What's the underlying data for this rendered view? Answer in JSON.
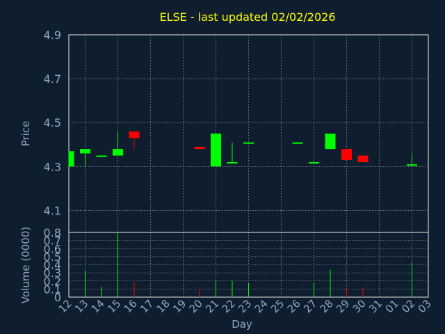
{
  "chart_data": {
    "type": "candlestick",
    "title": "ELSE - last updated 02/02/2026",
    "ylabel": "Price",
    "volume_ylabel": "Volume (0000)",
    "xlabel": "Day",
    "ylim": [
      4.0,
      4.9
    ],
    "volume_ylim": [
      0,
      0.8
    ],
    "price_ticks": [
      "4.9",
      "4.7",
      "4.5",
      "4.3",
      "4.1"
    ],
    "volume_ticks": [
      "0.8",
      "0.7",
      "0.6",
      "0.5",
      "0.4",
      "0.3",
      "0.2",
      "0.1",
      "0"
    ],
    "categories": [
      "12",
      "13",
      "14",
      "15",
      "16",
      "17",
      "18",
      "19",
      "20",
      "21",
      "22",
      "23",
      "24",
      "25",
      "26",
      "27",
      "28",
      "29",
      "30",
      "31",
      "01",
      "02",
      "03"
    ],
    "colors": {
      "up": "#00ff00",
      "down": "#ff0000",
      "title": "#ffff00",
      "axis_text": "#8fa9c6",
      "background": "#0f1e2e"
    },
    "candles": [
      {
        "x": "12",
        "open": 4.3,
        "high": 4.37,
        "low": 4.3,
        "close": 4.37,
        "volume": 0.0
      },
      {
        "x": "13",
        "open": 4.36,
        "high": 4.38,
        "low": 4.3,
        "close": 4.38,
        "volume": 0.33
      },
      {
        "x": "14",
        "open": 4.35,
        "high": 4.35,
        "low": 4.35,
        "close": 4.35,
        "volume": 0.13
      },
      {
        "x": "15",
        "open": 4.35,
        "high": 4.46,
        "low": 4.35,
        "close": 4.38,
        "volume": 0.8
      },
      {
        "x": "16",
        "open": 4.46,
        "high": 4.46,
        "low": 4.38,
        "close": 4.43,
        "volume": 0.19
      },
      {
        "x": "20",
        "open": 4.39,
        "high": 4.39,
        "low": 4.38,
        "close": 4.38,
        "volume": 0.1
      },
      {
        "x": "21",
        "open": 4.3,
        "high": 4.45,
        "low": 4.3,
        "close": 4.45,
        "volume": 0.2
      },
      {
        "x": "22",
        "open": 4.32,
        "high": 4.41,
        "low": 4.32,
        "close": 4.32,
        "volume": 0.2
      },
      {
        "x": "23",
        "open": 4.41,
        "high": 4.41,
        "low": 4.41,
        "close": 4.41,
        "volume": 0.17
      },
      {
        "x": "26",
        "open": 4.41,
        "high": 4.41,
        "low": 4.41,
        "close": 4.41,
        "volume": 0.0
      },
      {
        "x": "27",
        "open": 4.32,
        "high": 4.32,
        "low": 4.32,
        "close": 4.32,
        "volume": 0.18
      },
      {
        "x": "28",
        "open": 4.38,
        "high": 4.45,
        "low": 4.38,
        "close": 4.45,
        "volume": 0.34
      },
      {
        "x": "29",
        "open": 4.38,
        "high": 4.38,
        "low": 4.33,
        "close": 4.33,
        "volume": 0.11
      },
      {
        "x": "30",
        "open": 4.35,
        "high": 4.35,
        "low": 4.32,
        "close": 4.32,
        "volume": 0.11
      },
      {
        "x": "02",
        "open": 4.31,
        "high": 4.36,
        "low": 4.3,
        "close": 4.31,
        "volume": 0.43
      }
    ]
  }
}
